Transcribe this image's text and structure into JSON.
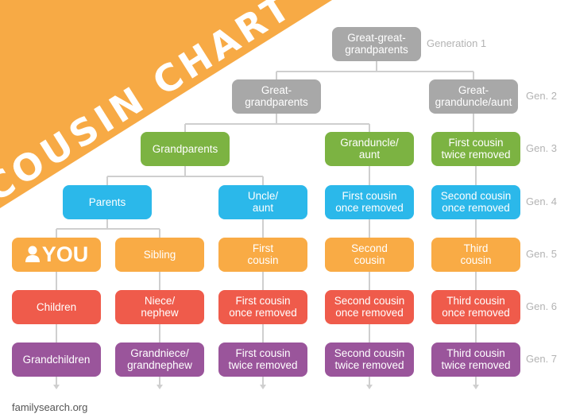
{
  "title": "COUSIN CHART",
  "footer": "familysearch.org",
  "colors": {
    "banner": "#f7aa45",
    "gen1_2": "#a8a8a8",
    "gen3": "#7cb342",
    "gen4": "#2bb8ea",
    "gen5": "#f9ab45",
    "gen6": "#ef5b4b",
    "gen7": "#9a559b",
    "line": "#cfcfcf",
    "gen_label": "#b3b3b3"
  },
  "generations": [
    "Generation 1",
    "Gen. 2",
    "Gen. 3",
    "Gen. 4",
    "Gen. 5",
    "Gen. 6",
    "Gen. 7"
  ],
  "nodes": [
    {
      "label": "Great-great-\ngrandparents",
      "generation": 1
    },
    {
      "label": "Great-\ngrandparents",
      "generation": 2
    },
    {
      "label": "Great-\ngranduncle/aunt",
      "generation": 2
    },
    {
      "label": "Grandparents",
      "generation": 3
    },
    {
      "label": "Granduncle/\naunt",
      "generation": 3
    },
    {
      "label": "First cousin\ntwice removed",
      "generation": 3
    },
    {
      "label": "Parents",
      "generation": 4
    },
    {
      "label": "Uncle/\naunt",
      "generation": 4
    },
    {
      "label": "First cousin\nonce removed",
      "generation": 4
    },
    {
      "label": "Second cousin\nonce removed",
      "generation": 4
    },
    {
      "label": "YOU",
      "generation": 5,
      "icon": "person-icon"
    },
    {
      "label": "Sibling",
      "generation": 5
    },
    {
      "label": "First\ncousin",
      "generation": 5
    },
    {
      "label": "Second\ncousin",
      "generation": 5
    },
    {
      "label": "Third\ncousin",
      "generation": 5
    },
    {
      "label": "Children",
      "generation": 6
    },
    {
      "label": "Niece/\nnephew",
      "generation": 6
    },
    {
      "label": "First cousin\nonce removed",
      "generation": 6
    },
    {
      "label": "Second cousin\nonce removed",
      "generation": 6
    },
    {
      "label": "Third cousin\nonce removed",
      "generation": 6
    },
    {
      "label": "Grandchildren",
      "generation": 7
    },
    {
      "label": "Grandniece/\ngrandnephew",
      "generation": 7
    },
    {
      "label": "First cousin\ntwice removed",
      "generation": 7
    },
    {
      "label": "Second cousin\ntwice removed",
      "generation": 7
    },
    {
      "label": "Third cousin\ntwice removed",
      "generation": 7
    }
  ]
}
